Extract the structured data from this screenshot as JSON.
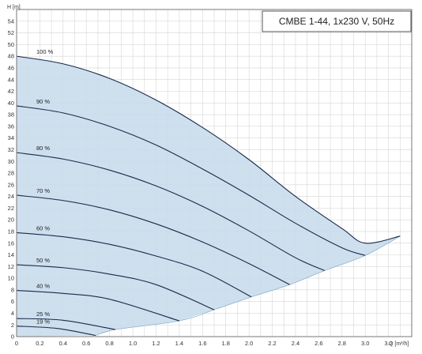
{
  "chart_data": {
    "type": "line",
    "title": "CMBE 1-44, 1x230 V, 50Hz",
    "ylabel": "H [m]",
    "xlabel": "Q [m³/h]",
    "xlim": [
      0,
      3.4
    ],
    "ylim": [
      0,
      56
    ],
    "xticks": [
      "0",
      "0.2",
      "0.4",
      "0.6",
      "0.8",
      "1.0",
      "1.2",
      "1.4",
      "1.6",
      "1.8",
      "2.0",
      "2.2",
      "2.4",
      "2.6",
      "2.8",
      "3.0",
      "3.2"
    ],
    "yticks": [
      "0",
      "2",
      "4",
      "6",
      "8",
      "10",
      "12",
      "14",
      "16",
      "18",
      "20",
      "22",
      "24",
      "26",
      "28",
      "30",
      "32",
      "34",
      "36",
      "38",
      "40",
      "42",
      "44",
      "46",
      "48",
      "50",
      "52",
      "54"
    ],
    "grid": true,
    "colors": {
      "fill": "#c9dcec",
      "curve": "#1a2a4a",
      "grid": "#d6d6d6",
      "frame": "#777777"
    },
    "series": [
      {
        "name": "100 %",
        "x": [
          0,
          0.4,
          0.8,
          1.2,
          1.6,
          2.0,
          2.4,
          2.8,
          3.0,
          3.3
        ],
        "y": [
          48,
          46.7,
          44.2,
          40.5,
          35.8,
          30.3,
          24.0,
          18.5,
          16.0,
          17.2
        ]
      },
      {
        "name": "90 %",
        "x": [
          0,
          0.4,
          0.8,
          1.2,
          1.6,
          2.0,
          2.4,
          2.8,
          3.0
        ],
        "y": [
          39.5,
          38.3,
          36.0,
          32.8,
          28.7,
          24.2,
          19.4,
          15.2,
          13.9
        ]
      },
      {
        "name": "80 %",
        "x": [
          0,
          0.4,
          0.8,
          1.2,
          1.6,
          2.0,
          2.4,
          2.65
        ],
        "y": [
          31.5,
          30.4,
          28.5,
          25.8,
          22.3,
          18.1,
          13.5,
          11.3
        ]
      },
      {
        "name": "70 %",
        "x": [
          0,
          0.4,
          0.8,
          1.2,
          1.6,
          2.0,
          2.35
        ],
        "y": [
          24.2,
          23.3,
          21.7,
          19.3,
          16.2,
          12.5,
          8.9
        ]
      },
      {
        "name": "60 %",
        "x": [
          0,
          0.4,
          0.8,
          1.2,
          1.6,
          2.02
        ],
        "y": [
          17.8,
          17.1,
          15.8,
          13.8,
          11.2,
          6.8
        ]
      },
      {
        "name": "50 %",
        "x": [
          0,
          0.4,
          0.8,
          1.2,
          1.7
        ],
        "y": [
          12.3,
          11.8,
          10.7,
          8.9,
          4.6
        ]
      },
      {
        "name": "40 %",
        "x": [
          0,
          0.4,
          0.8,
          1.4
        ],
        "y": [
          7.9,
          7.4,
          6.4,
          2.7
        ]
      },
      {
        "name": "25 %",
        "x": [
          0,
          0.4,
          0.85
        ],
        "y": [
          3.1,
          2.8,
          1.2
        ]
      },
      {
        "name": "19 %",
        "x": [
          0,
          0.35,
          0.68
        ],
        "y": [
          1.8,
          1.4,
          0.2
        ]
      }
    ],
    "min_curve": {
      "x": [
        0.68,
        0.85,
        1.4,
        1.7,
        2.02,
        2.35,
        2.65,
        3.0,
        3.3
      ],
      "y": [
        0.2,
        1.2,
        2.7,
        4.6,
        6.8,
        8.9,
        11.3,
        13.9,
        17.2
      ]
    }
  }
}
